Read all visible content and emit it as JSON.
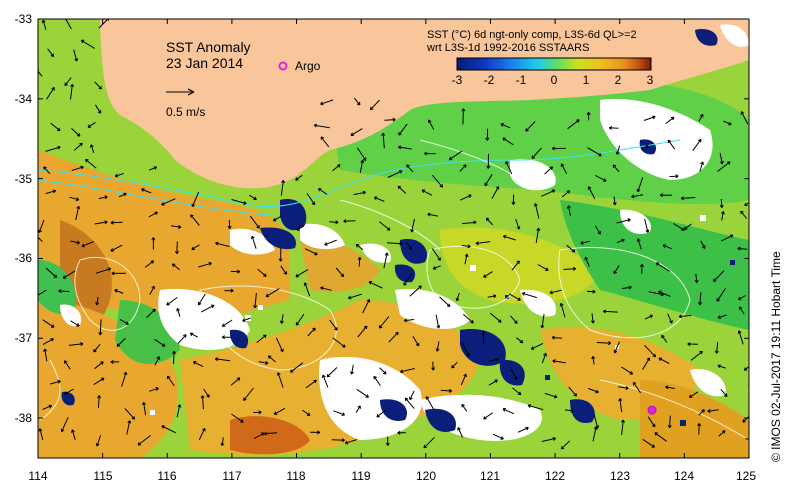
{
  "map": {
    "title": "SST Anomaly",
    "date": "23 Jan 2014",
    "argo_label": "Argo",
    "velocity_label": "0.5 m/s",
    "product_line1": "SST (°C) 6d ngt-only comp, L3S-6d QL>=2",
    "product_line2": "wrt L3S-1d 1992-2016 SSTAARS",
    "credit": "© IMOS 02-Jul-2017 19:11 Hobart Time",
    "lon_ticks": [
      "114",
      "115",
      "116",
      "117",
      "118",
      "119",
      "120",
      "121",
      "122",
      "123",
      "124",
      "125"
    ],
    "lat_ticks": [
      "-33",
      "-34",
      "-35",
      "-36",
      "-37",
      "-38"
    ],
    "colorbar_ticks": [
      "-3",
      "-2",
      "-1",
      "0",
      "1",
      "2",
      "3"
    ],
    "colorbar_range": [
      -3,
      3
    ],
    "lon_range": [
      114,
      125
    ],
    "lat_range": [
      -38.5,
      -33
    ],
    "argo_float": {
      "lon": 123.5,
      "lat": -37.9
    },
    "colors": {
      "land": "#f9c59b",
      "no_data": "#ffffff",
      "sst_neutral": "#9ad43a",
      "sst_warm": "#e8a830",
      "sst_cold": "#0b1f7a",
      "contour": "#ffffff",
      "coast_current": "#40e0f0",
      "argo": "#e020e0"
    },
    "colormap": [
      "#061a70",
      "#1238c8",
      "#1a8cf0",
      "#20d0e8",
      "#60e060",
      "#c8e020",
      "#f0c020",
      "#e89020",
      "#c05010",
      "#7a1808"
    ]
  }
}
